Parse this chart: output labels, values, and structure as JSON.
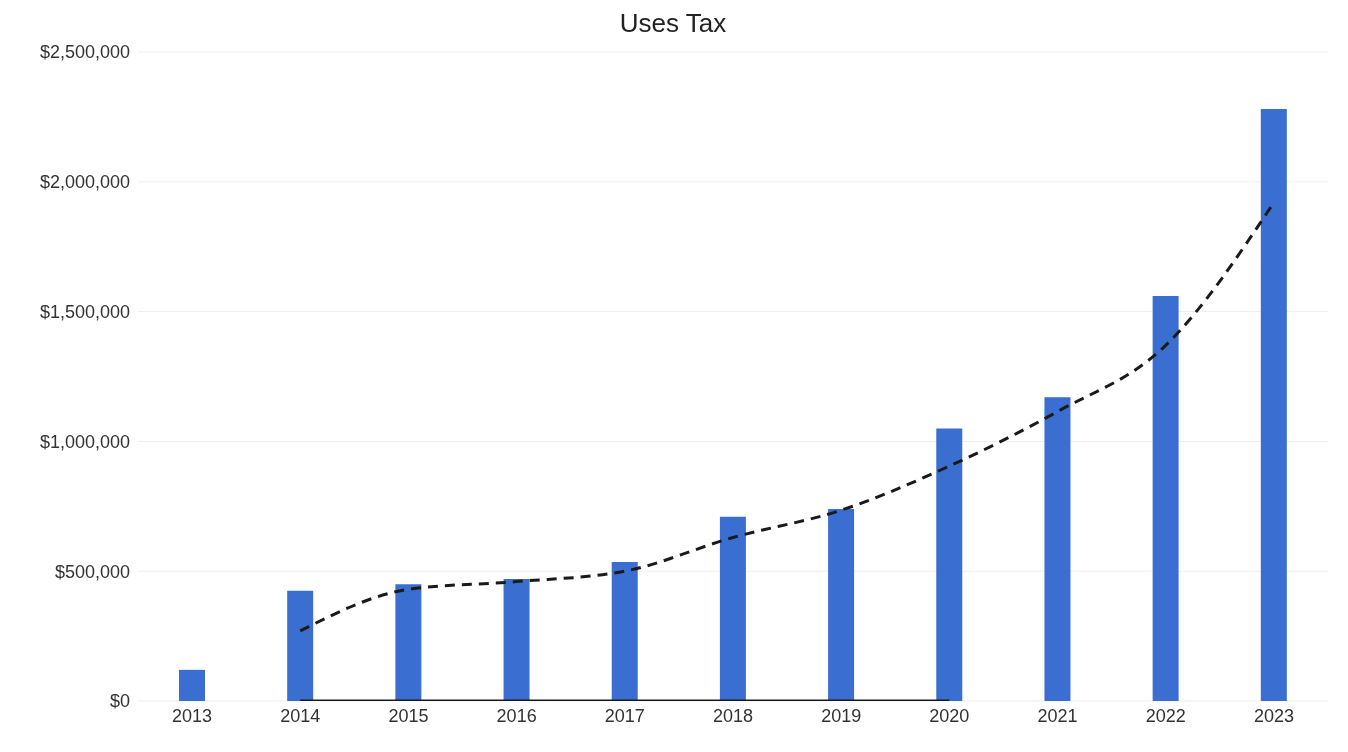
{
  "chart_data": {
    "type": "bar",
    "title": "Uses Tax",
    "categories": [
      "2013",
      "2014",
      "2015",
      "2016",
      "2017",
      "2018",
      "2019",
      "2020",
      "2021",
      "2022",
      "2023"
    ],
    "series": [
      {
        "color": "#3a6fd1",
        "values": [
          120000,
          425000,
          450000,
          470000,
          535000,
          710000,
          740000,
          1050000,
          1170000,
          1560000,
          2280000
        ]
      },
      {
        "type": "line",
        "color": "#1a1a1a",
        "line_style": "dashed",
        "values": [
          null,
          270000,
          430000,
          460000,
          500000,
          630000,
          735000,
          905000,
          1115000,
          1370000,
          1920000
        ]
      },
      {
        "type": "line",
        "color": "#1a1a1a",
        "line_style": "solid",
        "values": [
          null,
          0,
          0,
          0,
          0,
          0,
          0,
          0,
          null,
          null,
          null
        ]
      }
    ],
    "ylim": [
      0,
      2500000
    ],
    "yticks": [
      {
        "value": 0,
        "label": "$0"
      },
      {
        "value": 500000,
        "label": "$500,000"
      },
      {
        "value": 1000000,
        "label": "$1,000,000"
      },
      {
        "value": 1500000,
        "label": "$1,500,000"
      },
      {
        "value": 2000000,
        "label": "$2,000,000"
      },
      {
        "value": 2500000,
        "label": "$2,500,000"
      }
    ],
    "grid": "y",
    "legend": false,
    "marker": "none"
  }
}
